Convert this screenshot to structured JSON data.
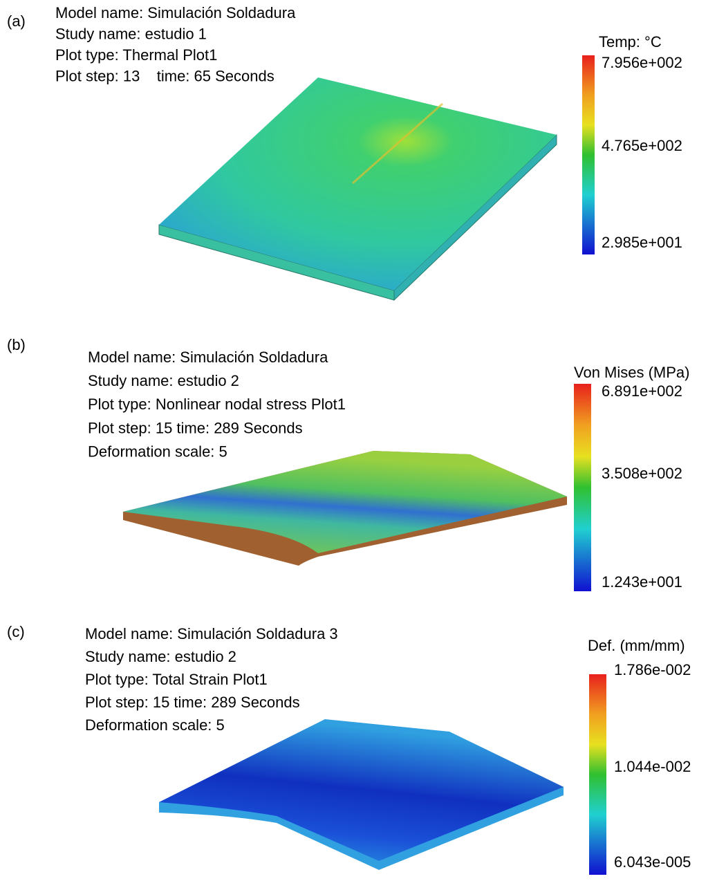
{
  "panels": [
    {
      "label": "(a)",
      "info": [
        "Model name: Simulación Soldadura",
        "Study name: estudio 1",
        "Plot type: Thermal Plot1",
        "Plot step: 13    time: 65 Seconds"
      ],
      "legend": {
        "title": "Temp: °C",
        "ticks": [
          "7.956e+002",
          "4.765e+002",
          "2.985e+001"
        ]
      }
    },
    {
      "label": "(b)",
      "info": [
        "Model name: Simulación Soldadura",
        "Study name: estudio 2",
        "Plot type: Nonlinear nodal stress Plot1",
        "Plot step: 15 time: 289 Seconds",
        "Deformation scale: 5"
      ],
      "legend": {
        "title": "Von Mises (MPa)",
        "ticks": [
          "6.891e+002",
          "3.508e+002",
          "1.243e+001"
        ]
      }
    },
    {
      "label": "(c)",
      "info": [
        "Model name: Simulación Soldadura 3",
        "Study name: estudio 2",
        "Plot type: Total Strain Plot1",
        "Plot step: 15 time: 289 Seconds",
        "Deformation scale: 5"
      ],
      "legend": {
        "title": "Def. (mm/mm)",
        "ticks": [
          "1.786e-002",
          "1.044e-002",
          "6.043e-005"
        ]
      }
    }
  ]
}
